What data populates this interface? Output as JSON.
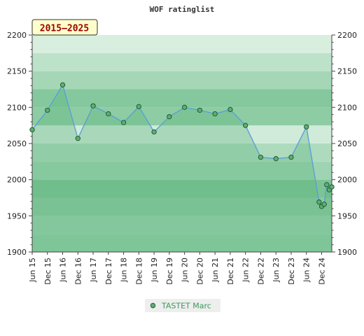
{
  "chart_data": {
    "type": "area",
    "title": "WOF ratinglist",
    "period_label": "2015–2025",
    "ylim": [
      1900,
      2200
    ],
    "yticks": [
      1900,
      1950,
      2000,
      2050,
      2100,
      2150,
      2200
    ],
    "grid": false,
    "legend_position": "bottom-center",
    "x_tick_labels": [
      "Jun 15",
      "Dec 15",
      "Jun 16",
      "Dec 16",
      "Jun 17",
      "Dec 17",
      "Jun 18",
      "Dec 18",
      "Jun 19",
      "Dec 19",
      "Jun 20",
      "Dec 20",
      "Jun 21",
      "Dec 21",
      "Jun 22",
      "Dec 22",
      "Jun 23",
      "Dec 23",
      "Jun 24",
      "Dec 24"
    ],
    "series": [
      {
        "name": "TASTET Marc",
        "color": "#3a9a5a",
        "points": [
          {
            "x": "2015-06",
            "y": 2069
          },
          {
            "x": "2015-12",
            "y": 2096
          },
          {
            "x": "2016-06",
            "y": 2131
          },
          {
            "x": "2016-12",
            "y": 2057
          },
          {
            "x": "2017-06",
            "y": 2102
          },
          {
            "x": "2017-12",
            "y": 2091
          },
          {
            "x": "2018-06",
            "y": 2079
          },
          {
            "x": "2018-12",
            "y": 2101
          },
          {
            "x": "2019-06",
            "y": 2066
          },
          {
            "x": "2019-12",
            "y": 2087
          },
          {
            "x": "2020-06",
            "y": 2100
          },
          {
            "x": "2020-12",
            "y": 2096
          },
          {
            "x": "2021-06",
            "y": 2091
          },
          {
            "x": "2021-12",
            "y": 2097
          },
          {
            "x": "2022-06",
            "y": 2075
          },
          {
            "x": "2022-12",
            "y": 2031
          },
          {
            "x": "2023-06",
            "y": 2029
          },
          {
            "x": "2023-12",
            "y": 2031
          },
          {
            "x": "2024-06",
            "y": 2073
          },
          {
            "x": "2024-11",
            "y": 1969
          },
          {
            "x": "2024-12",
            "y": 1963
          },
          {
            "x": "2025-01",
            "y": 1966
          },
          {
            "x": "2025-02",
            "y": 1993
          },
          {
            "x": "2025-03",
            "y": 1986
          },
          {
            "x": "2025-04",
            "y": 1990
          }
        ]
      }
    ]
  },
  "colors": {
    "band_dark": "#7cc496",
    "band_light": "#f2faf4",
    "area_fill": "#5cb57a",
    "line": "#5aa0d8",
    "marker_fill": "#5cae70",
    "marker_stroke": "#1e5030",
    "period_box_fill": "#ffffcc",
    "legend_bg": "#eeeeee"
  }
}
